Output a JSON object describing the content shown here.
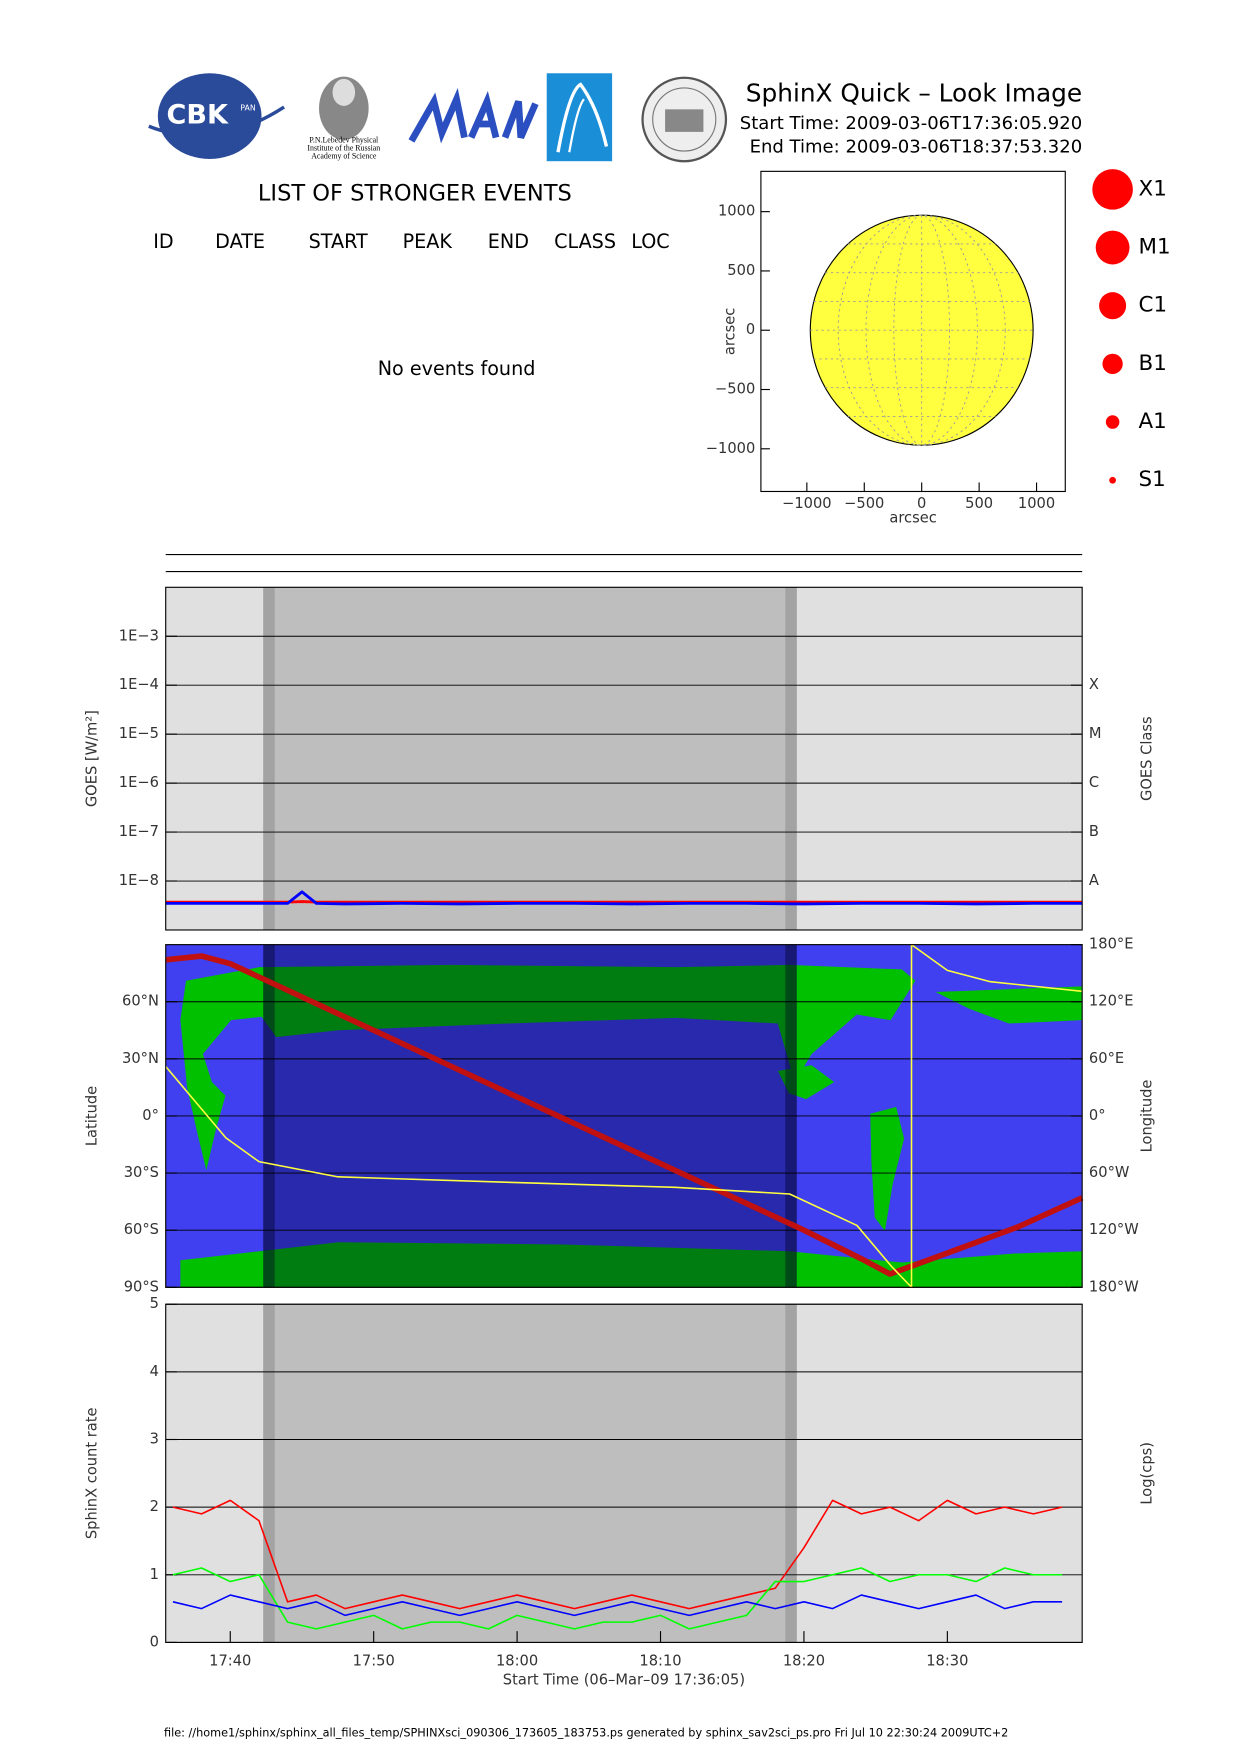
{
  "header": {
    "logos": [
      "CBK",
      "PAN",
      "P.N.Lebedev Physical",
      "Institute of the Russian",
      "Academy of Science"
    ],
    "title": "SphinX Quick – Look Image",
    "start_time": "Start Time: 2009-03-06T17:36:05.920",
    "end_time": "End Time: 2009-03-06T18:37:53.320"
  },
  "events_list": {
    "title": "LIST OF STRONGER EVENTS",
    "columns": [
      "ID",
      "DATE",
      "START",
      "PEAK",
      "END",
      "CLASS",
      "LOC"
    ],
    "message": "No events found"
  },
  "flare_classes": [
    "X1",
    "M1",
    "C1",
    "B1",
    "A1",
    "S1"
  ],
  "shading": {
    "eclipse": [
      1062.3,
      1099.5
    ],
    "penumbra": [
      [
        1062.3,
        1063.1
      ],
      [
        1098.7,
        1099.5
      ]
    ]
  },
  "footer": "file: //home1/sphinx/sphinx_all_files_temp/SPHINXsci_090306_173605_183753.ps generated by sphinx_sav2sci_ps.pro Fri Jul 10 22:30:24 2009UTC+2",
  "chart_data": [
    {
      "type": "disk",
      "x_label": "arcsec",
      "y_label": "arcsec",
      "radius": 970,
      "color": "#ffff40",
      "xlim": [
        -1400,
        1250
      ],
      "ylim": [
        -1360,
        1340
      ],
      "xticks": [
        {
          "value": -1000,
          "label": "−1000"
        },
        {
          "value": -500,
          "label": "−500"
        },
        0,
        500,
        1000
      ],
      "yticks": [
        {
          "value": -1000,
          "label": "−1000"
        },
        {
          "value": -500,
          "label": "−500"
        },
        0,
        500,
        1000
      ]
    },
    {
      "type": "line",
      "y_label": "GOES [W/m²]",
      "y2_label": "GOES Class",
      "log_y": true,
      "grid": true,
      "xlim": [
        1055.5,
        1119.4
      ],
      "ylim": [
        1e-09,
        0.01
      ],
      "yticks": [
        {
          "value": 1e-08,
          "label": "1E−8"
        },
        {
          "value": 1e-07,
          "label": "1E−7"
        },
        {
          "value": 1e-06,
          "label": "1E−6"
        },
        {
          "value": 1e-05,
          "label": "1E−5"
        },
        {
          "value": 0.0001,
          "label": "1E−4"
        },
        {
          "value": 0.001,
          "label": "1E−3"
        }
      ],
      "y2ticks": [
        {
          "value": 1e-08,
          "label": "A"
        },
        {
          "value": 1e-07,
          "label": "B"
        },
        {
          "value": 1e-06,
          "label": "C"
        },
        {
          "value": 1e-05,
          "label": "M"
        },
        {
          "value": 0.0001,
          "label": "X"
        }
      ],
      "x": [
        1055.5,
        1060,
        1063,
        1064,
        1065,
        1066,
        1068,
        1072,
        1076,
        1080,
        1084,
        1088,
        1092,
        1096,
        1100,
        1104,
        1108,
        1112,
        1116,
        1119.4
      ],
      "series": [
        {
          "color": "#ff0000",
          "values": [
            3.7e-09,
            3.7e-09,
            3.7e-09,
            3.7e-09,
            3.8e-09,
            3.7e-09,
            3.7e-09,
            3.7e-09,
            3.7e-09,
            3.7e-09,
            3.7e-09,
            3.7e-09,
            3.7e-09,
            3.7e-09,
            3.7e-09,
            3.7e-09,
            3.7e-09,
            3.7e-09,
            3.7e-09,
            3.7e-09
          ]
        },
        {
          "color": "#0000ff",
          "values": [
            3.5e-09,
            3.5e-09,
            3.5e-09,
            3.5e-09,
            6e-09,
            3.5e-09,
            3.4e-09,
            3.5e-09,
            3.4e-09,
            3.5e-09,
            3.5e-09,
            3.4e-09,
            3.5e-09,
            3.5e-09,
            3.4e-09,
            3.5e-09,
            3.5e-09,
            3.4e-09,
            3.5e-09,
            3.5e-09
          ]
        }
      ]
    },
    {
      "type": "line",
      "y_label": "Latitude",
      "y2_label": "Longitude",
      "grid": true,
      "xlim": [
        1055.5,
        1119.4
      ],
      "ylim": [
        -90,
        90
      ],
      "y2lim": [
        -180,
        180
      ],
      "yticks": [
        {
          "value": -90,
          "label": "90°S"
        },
        {
          "value": -60,
          "label": "60°S"
        },
        {
          "value": -30,
          "label": "30°S"
        },
        {
          "value": 0,
          "label": "0°"
        },
        {
          "value": 30,
          "label": "30°N"
        },
        {
          "value": 60,
          "label": "60°N"
        }
      ],
      "y2ticks": [
        {
          "value": -180,
          "label": "180°W"
        },
        {
          "value": -120,
          "label": "120°W"
        },
        {
          "value": -60,
          "label": "60°W"
        },
        {
          "value": 0,
          "label": "0°"
        },
        {
          "value": 60,
          "label": "60°E"
        },
        {
          "value": 120,
          "label": "120°E"
        },
        {
          "value": 180,
          "label": "180°E"
        }
      ],
      "series": [
        {
          "color": "#c01010",
          "x": [
            1055.5,
            1058,
            1060,
            1070,
            1080,
            1090,
            1100,
            1104,
            1106,
            1110,
            1115,
            1119.4
          ],
          "values": [
            82,
            84,
            80,
            45,
            10,
            -25,
            -60,
            -75,
            -83,
            -72,
            -58,
            -43
          ]
        },
        {
          "color": "#ffff40",
          "axis": "y2",
          "x": [
            1055.5,
            1059.7,
            1062,
            1067.5,
            1080,
            1091,
            1099,
            1103.7,
            1106.1,
            1107.5,
            1107.5,
            1110,
            1113,
            1119.4
          ],
          "values": [
            52,
            -23,
            -48,
            -64,
            -70,
            -75,
            -82,
            -115,
            -158,
            -180,
            180,
            153,
            141,
            131
          ]
        }
      ]
    },
    {
      "type": "line",
      "y_label": "SphinX count rate",
      "y2_label": "Log(cps)",
      "x_label": "Start Time (06–Mar–09 17:36:05)",
      "grid": true,
      "xlim": [
        1055.5,
        1119.4
      ],
      "ylim": [
        0,
        5
      ],
      "yticks": [
        0,
        1,
        2,
        3,
        4,
        5
      ],
      "xticks": [
        {
          "value": 1060,
          "label": "17:40"
        },
        {
          "value": 1070,
          "label": "17:50"
        },
        {
          "value": 1080,
          "label": "18:00"
        },
        {
          "value": 1090,
          "label": "18:10"
        },
        {
          "value": 1100,
          "label": "18:20"
        },
        {
          "value": 1110,
          "label": "18:30"
        }
      ],
      "x": [
        1056,
        1058,
        1060,
        1062,
        1064,
        1066,
        1068,
        1070,
        1072,
        1074,
        1076,
        1078,
        1080,
        1082,
        1084,
        1086,
        1088,
        1090,
        1092,
        1094,
        1096,
        1098,
        1100,
        1102,
        1104,
        1106,
        1108,
        1110,
        1112,
        1114,
        1116,
        1118
      ],
      "series": [
        {
          "color": "#ff0000",
          "values": [
            2.0,
            1.9,
            2.1,
            1.8,
            0.6,
            0.7,
            0.5,
            0.6,
            0.7,
            0.6,
            0.5,
            0.6,
            0.7,
            0.6,
            0.5,
            0.6,
            0.7,
            0.6,
            0.5,
            0.6,
            0.7,
            0.8,
            1.4,
            2.1,
            1.9,
            2.0,
            1.8,
            2.1,
            1.9,
            2.0,
            1.9,
            2.0
          ]
        },
        {
          "color": "#00ff00",
          "values": [
            1.0,
            1.1,
            0.9,
            1.0,
            0.3,
            0.2,
            0.3,
            0.4,
            0.2,
            0.3,
            0.3,
            0.2,
            0.4,
            0.3,
            0.2,
            0.3,
            0.3,
            0.4,
            0.2,
            0.3,
            0.4,
            0.9,
            0.9,
            1.0,
            1.1,
            0.9,
            1.0,
            1.0,
            0.9,
            1.1,
            1.0,
            1.0
          ]
        },
        {
          "color": "#0000ff",
          "values": [
            0.6,
            0.5,
            0.7,
            0.6,
            0.5,
            0.6,
            0.4,
            0.5,
            0.6,
            0.5,
            0.4,
            0.5,
            0.6,
            0.5,
            0.4,
            0.5,
            0.6,
            0.5,
            0.4,
            0.5,
            0.6,
            0.5,
            0.6,
            0.5,
            0.7,
            0.6,
            0.5,
            0.6,
            0.7,
            0.5,
            0.6,
            0.6
          ]
        }
      ]
    }
  ]
}
